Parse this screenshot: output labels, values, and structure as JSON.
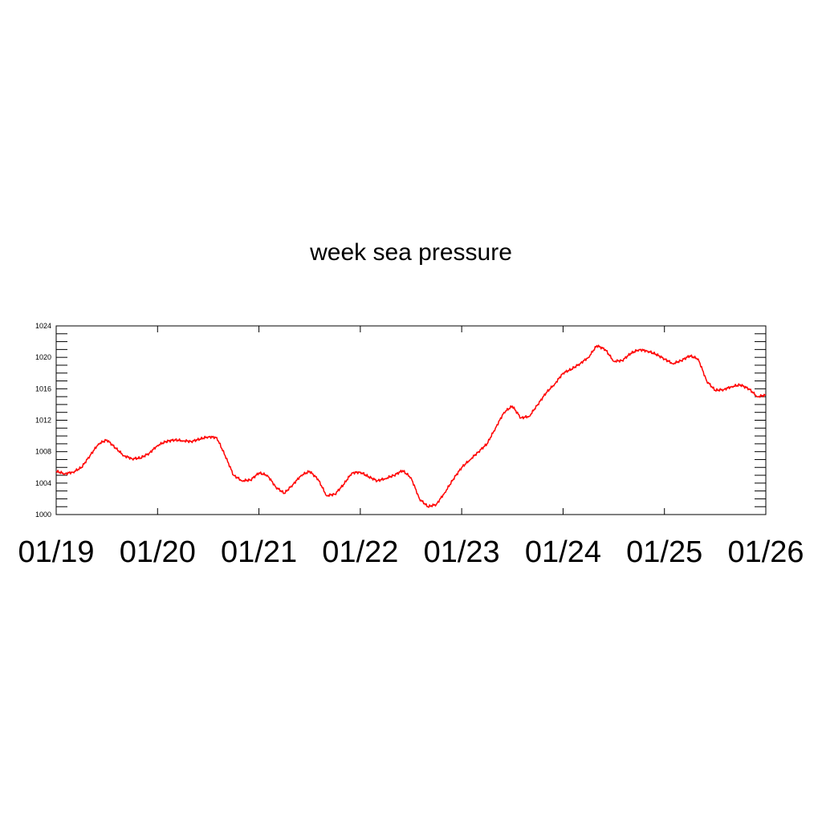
{
  "chart_data": {
    "type": "line",
    "title": "week sea pressure",
    "xlabel": "",
    "ylabel": "",
    "x_ticks": [
      "01/19",
      "01/20",
      "01/21",
      "01/22",
      "01/23",
      "01/24",
      "01/25",
      "01/26"
    ],
    "xlim": [
      "01/19 00:00",
      "01/26 00:00"
    ],
    "ylim": [
      1000,
      1024
    ],
    "y_ticks": [
      1000,
      1004,
      1008,
      1012,
      1016,
      1020,
      1024
    ],
    "y_minor_step": 1,
    "grid": false,
    "legend": "none",
    "series": [
      {
        "color": "#ff0000",
        "x": [
          "01/19 00:00",
          "01/19 02:00",
          "01/19 04:00",
          "01/19 06:00",
          "01/19 08:00",
          "01/19 10:00",
          "01/19 12:00",
          "01/19 14:00",
          "01/19 16:00",
          "01/19 18:00",
          "01/19 20:00",
          "01/19 22:00",
          "01/20 00:00",
          "01/20 02:00",
          "01/20 04:00",
          "01/20 06:00",
          "01/20 08:00",
          "01/20 10:00",
          "01/20 12:00",
          "01/20 14:00",
          "01/20 16:00",
          "01/20 18:00",
          "01/20 20:00",
          "01/20 22:00",
          "01/21 00:00",
          "01/21 02:00",
          "01/21 04:00",
          "01/21 06:00",
          "01/21 08:00",
          "01/21 10:00",
          "01/21 12:00",
          "01/21 14:00",
          "01/21 16:00",
          "01/21 18:00",
          "01/21 20:00",
          "01/21 22:00",
          "01/22 00:00",
          "01/22 02:00",
          "01/22 04:00",
          "01/22 06:00",
          "01/22 08:00",
          "01/22 10:00",
          "01/22 12:00",
          "01/22 14:00",
          "01/22 16:00",
          "01/22 18:00",
          "01/22 20:00",
          "01/22 22:00",
          "01/23 00:00",
          "01/23 02:00",
          "01/23 04:00",
          "01/23 06:00",
          "01/23 08:00",
          "01/23 10:00",
          "01/23 12:00",
          "01/23 14:00",
          "01/23 16:00",
          "01/23 18:00",
          "01/23 20:00",
          "01/23 22:00",
          "01/24 00:00",
          "01/24 02:00",
          "01/24 04:00",
          "01/24 06:00",
          "01/24 08:00",
          "01/24 10:00",
          "01/24 12:00",
          "01/24 14:00",
          "01/24 16:00",
          "01/24 18:00",
          "01/24 20:00",
          "01/24 22:00",
          "01/25 00:00",
          "01/25 02:00",
          "01/25 04:00",
          "01/25 06:00",
          "01/25 08:00",
          "01/25 10:00",
          "01/25 12:00",
          "01/25 14:00",
          "01/25 16:00",
          "01/25 18:00",
          "01/25 20:00",
          "01/25 22:00",
          "01/26 00:00"
        ],
        "y": [
          1005.5,
          1005.2,
          1005.4,
          1006.0,
          1007.5,
          1009.0,
          1009.5,
          1008.5,
          1007.5,
          1007.1,
          1007.2,
          1007.8,
          1008.8,
          1009.3,
          1009.5,
          1009.4,
          1009.3,
          1009.6,
          1009.9,
          1009.8,
          1007.5,
          1005.0,
          1004.3,
          1004.4,
          1005.3,
          1005.0,
          1003.5,
          1002.7,
          1003.8,
          1005.0,
          1005.5,
          1004.5,
          1002.4,
          1002.6,
          1003.8,
          1005.3,
          1005.4,
          1004.8,
          1004.3,
          1004.6,
          1005.0,
          1005.6,
          1004.7,
          1002.0,
          1001.0,
          1001.3,
          1002.8,
          1004.5,
          1006.0,
          1007.0,
          1008.0,
          1009.0,
          1011.0,
          1013.0,
          1013.8,
          1012.3,
          1012.5,
          1014.0,
          1015.5,
          1016.6,
          1018.0,
          1018.5,
          1019.2,
          1020.0,
          1021.5,
          1021.0,
          1019.5,
          1019.6,
          1020.5,
          1021.0,
          1020.8,
          1020.4,
          1019.8,
          1019.2,
          1019.6,
          1020.2,
          1019.8,
          1017.0,
          1015.8,
          1015.9,
          1016.3,
          1016.5,
          1016.0,
          1015.0,
          1015.2
        ]
      }
    ]
  }
}
